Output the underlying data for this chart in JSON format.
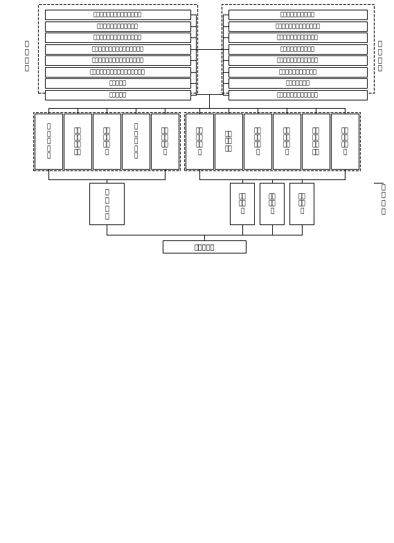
{
  "title": "出铝指示量",
  "bg_color": "#ffffff",
  "box_color": "#ffffff",
  "box_edge": "#000000",
  "left_boxes": [
    "经验获得噪声值数据及对应权重",
    "经验获得氧化铝下料量权重",
    "经验获得电解质水平数据及权重",
    "经验获得正常槽铝水平数据及权重",
    "经验获得二代槽铝水平数据及权重",
    "经验获得电解质出入天数数据及权重",
    "流铝量定值",
    "出铝量定值"
  ],
  "right_boxes": [
    "某个槽本周平均噪声值",
    "某个槽本周平均氧化铝下料量",
    "某个槽本周平均电解质水平",
    "某个槽本周平均铝水平",
    "某个槽本周电解质退出天数",
    "某个槽上个季度电流效率",
    "电解槽电流强度",
    "整个车间氧化铝平均下料量"
  ],
  "left_label": "经\n验\n所\n得",
  "right_label": "统\n计\n所\n得",
  "calc_label": "计\n算\n所\n得",
  "bottom_boxes_row1": [
    "集\n声\n值\n权\n重",
    "氧化\n铝下\n料量\n权重",
    "电解\n质水\n平权\n重",
    "铝\n水\n平\n权\n重",
    "电解\n质退\n出权\n重",
    "铝水\n平上\n限标\n准",
    "铝水\n平基\n准值",
    "铝水\n平下\n限标\n准",
    "铝水\n平上\n限权\n重",
    "铝水\n平基\n准值\n权重",
    "铝水\n平下\n限权\n重"
  ],
  "mid_left_box": "权\n重\n之\n和",
  "mid_right_boxes": [
    "出铝\n量上\n限",
    "出铝\n量下\n限",
    "出铝\n量标\n准"
  ],
  "output_box": "出铝指示量"
}
